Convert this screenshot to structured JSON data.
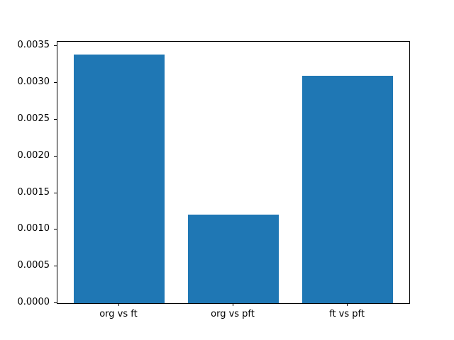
{
  "chart_data": {
    "type": "bar",
    "categories": [
      "org vs ft",
      "org vs pft",
      "ft vs pft"
    ],
    "values": [
      0.00339,
      0.00121,
      0.0031
    ],
    "title": "",
    "xlabel": "",
    "ylabel": "",
    "ylim": [
      0,
      0.00356
    ],
    "xlim": [
      -0.54,
      2.54
    ],
    "bar_width_fraction": 0.8,
    "yticks": [
      0.0,
      0.0005,
      0.001,
      0.0015,
      0.002,
      0.0025,
      0.003,
      0.0035
    ],
    "ytick_labels": [
      "0.0000",
      "0.0005",
      "0.0010",
      "0.0015",
      "0.0020",
      "0.0025",
      "0.0030",
      "0.0035"
    ],
    "bar_color": "#1f77b4",
    "background_color": "#ffffff",
    "spine_color": "#000000",
    "grid": false,
    "legend": null
  }
}
